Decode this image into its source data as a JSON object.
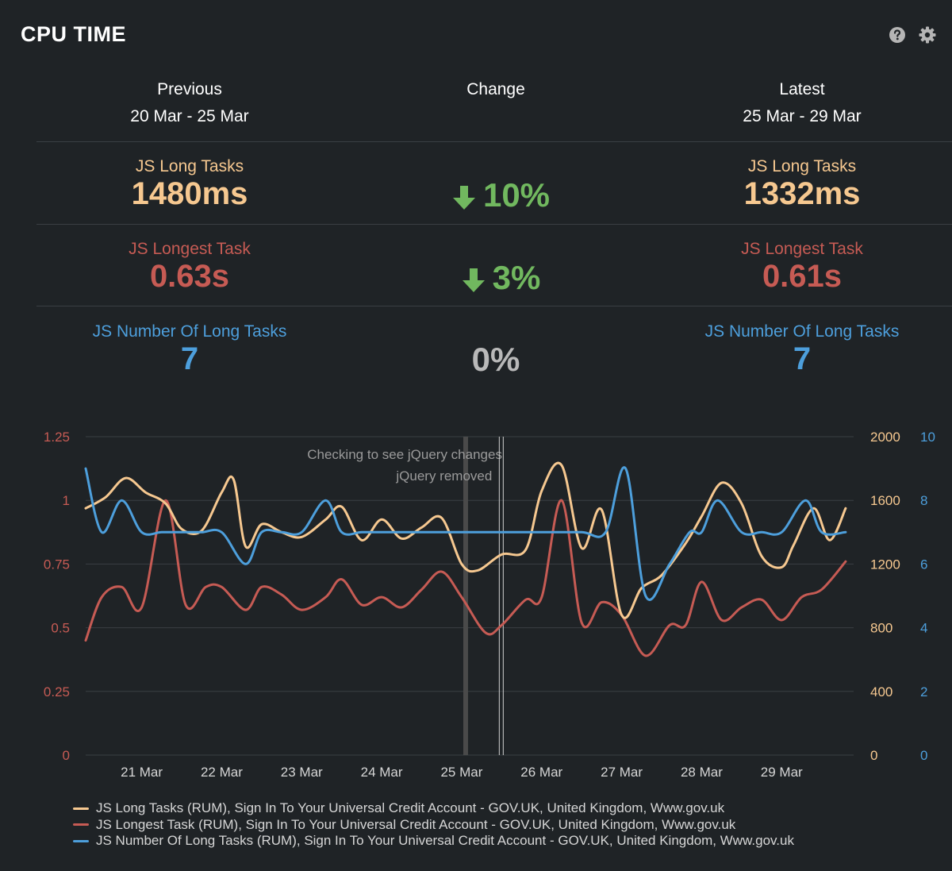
{
  "title": "CPU TIME",
  "icons": {
    "help": "help-icon",
    "settings": "gear-icon"
  },
  "colors": {
    "background": "#1f2326",
    "long_tasks": "#f6c890",
    "longest_task": "#c65b54",
    "number_of_tasks": "#4d9fdc",
    "decrease": "#71b85f",
    "neutral": "#b9b9b9",
    "grid": "#3a3f43",
    "annotation": "#9a9a9a"
  },
  "summary": {
    "previous": {
      "label": "Previous",
      "range": "20 Mar - 25 Mar"
    },
    "change_label": "Change",
    "latest": {
      "label": "Latest",
      "range": "25 Mar - 29 Mar"
    },
    "metrics": [
      {
        "name": "JS Long Tasks",
        "previous": "1480ms",
        "latest": "1332ms",
        "change": "10%",
        "direction": "down"
      },
      {
        "name": "JS Longest Task",
        "previous": "0.63s",
        "latest": "0.61s",
        "change": "3%",
        "direction": "down"
      },
      {
        "name": "JS Number Of Long Tasks",
        "previous": "7",
        "latest": "7",
        "change": "0%",
        "direction": "none"
      }
    ]
  },
  "chart_data": {
    "type": "line",
    "x_domain": [
      20.3,
      29.9
    ],
    "x_ticks": [
      21,
      22,
      23,
      24,
      25,
      26,
      27,
      28,
      29
    ],
    "x_tick_labels": [
      "21 Mar",
      "22 Mar",
      "23 Mar",
      "24 Mar",
      "25 Mar",
      "26 Mar",
      "27 Mar",
      "28 Mar",
      "29 Mar"
    ],
    "y_left": {
      "range": [
        0,
        1.25
      ],
      "ticks": [
        "0",
        "0.25",
        "0.5",
        "0.75",
        "1",
        "1.25"
      ],
      "color": "#c65b54"
    },
    "y_right1": {
      "range": [
        0,
        2000
      ],
      "ticks": [
        "0",
        "400",
        "800",
        "1200",
        "1600",
        "2000"
      ],
      "color": "#f6c890"
    },
    "y_right2": {
      "range": [
        0,
        10
      ],
      "ticks": [
        "0",
        "2",
        "4",
        "6",
        "8",
        "10"
      ],
      "color": "#4d9fdc"
    },
    "grid": true,
    "annotations": [
      {
        "x": 25.05,
        "text": "Checking to see jQuery changes",
        "style": "band"
      },
      {
        "x": 25.5,
        "text": "jQuery removed",
        "style": "double-line"
      }
    ],
    "series": [
      {
        "name": "JS Long Tasks (RUM), Sign In To Your Universal Credit Account - GOV.UK, United Kingdom, Www.gov.uk",
        "axis": "y_right1",
        "color": "#f6c890",
        "x": [
          20.3,
          20.55,
          20.8,
          21.05,
          21.3,
          21.5,
          21.75,
          22.0,
          22.15,
          22.3,
          22.5,
          22.75,
          23.0,
          23.3,
          23.5,
          23.75,
          24.0,
          24.25,
          24.5,
          24.75,
          25.0,
          25.2,
          25.5,
          25.8,
          26.0,
          26.25,
          26.5,
          26.75,
          27.0,
          27.25,
          27.5,
          27.8,
          28.0,
          28.25,
          28.5,
          28.75,
          29.0,
          29.15,
          29.4,
          29.6,
          29.8
        ],
        "values": [
          1550,
          1620,
          1740,
          1650,
          1580,
          1420,
          1410,
          1650,
          1730,
          1310,
          1450,
          1400,
          1370,
          1480,
          1560,
          1350,
          1480,
          1360,
          1430,
          1490,
          1200,
          1160,
          1260,
          1290,
          1660,
          1820,
          1300,
          1540,
          880,
          1050,
          1130,
          1330,
          1500,
          1710,
          1580,
          1250,
          1180,
          1320,
          1550,
          1350,
          1550
        ]
      },
      {
        "name": "JS Longest Task (RUM), Sign In To Your Universal Credit Account - GOV.UK, United Kingdom, Www.gov.uk",
        "axis": "y_left",
        "color": "#c65b54",
        "x": [
          20.3,
          20.5,
          20.75,
          21.0,
          21.3,
          21.55,
          21.8,
          22.0,
          22.3,
          22.5,
          22.75,
          23.0,
          23.3,
          23.5,
          23.75,
          24.0,
          24.25,
          24.5,
          24.75,
          25.0,
          25.3,
          25.5,
          25.8,
          26.0,
          26.25,
          26.5,
          26.75,
          27.0,
          27.3,
          27.6,
          27.8,
          28.0,
          28.25,
          28.5,
          28.75,
          29.0,
          29.25,
          29.5,
          29.8
        ],
        "values": [
          0.45,
          0.62,
          0.66,
          0.58,
          1.0,
          0.59,
          0.66,
          0.66,
          0.57,
          0.66,
          0.63,
          0.57,
          0.62,
          0.69,
          0.59,
          0.62,
          0.58,
          0.65,
          0.72,
          0.62,
          0.48,
          0.51,
          0.61,
          0.62,
          1.0,
          0.52,
          0.6,
          0.55,
          0.39,
          0.51,
          0.51,
          0.68,
          0.53,
          0.58,
          0.61,
          0.53,
          0.62,
          0.65,
          0.76
        ]
      },
      {
        "name": "JS Number Of Long Tasks (RUM), Sign In To Your Universal Credit Account - GOV.UK, United Kingdom, Www.gov.uk",
        "axis": "y_right2",
        "color": "#4d9fdc",
        "x": [
          20.3,
          20.5,
          20.75,
          21.0,
          21.25,
          21.5,
          21.75,
          22.0,
          22.3,
          22.5,
          22.75,
          23.0,
          23.3,
          23.5,
          23.75,
          24.0,
          24.5,
          25.0,
          25.5,
          26.0,
          26.5,
          26.8,
          27.05,
          27.3,
          27.6,
          27.85,
          28.0,
          28.2,
          28.5,
          28.75,
          29.0,
          29.3,
          29.5,
          29.8
        ],
        "values": [
          9,
          7,
          8,
          7,
          7,
          7,
          7,
          7,
          6,
          7,
          7,
          7,
          8,
          7,
          7,
          7,
          7,
          7,
          7,
          7,
          7,
          7,
          9,
          5,
          6,
          7,
          7,
          8,
          7,
          7,
          7,
          8,
          7,
          7
        ]
      }
    ]
  }
}
